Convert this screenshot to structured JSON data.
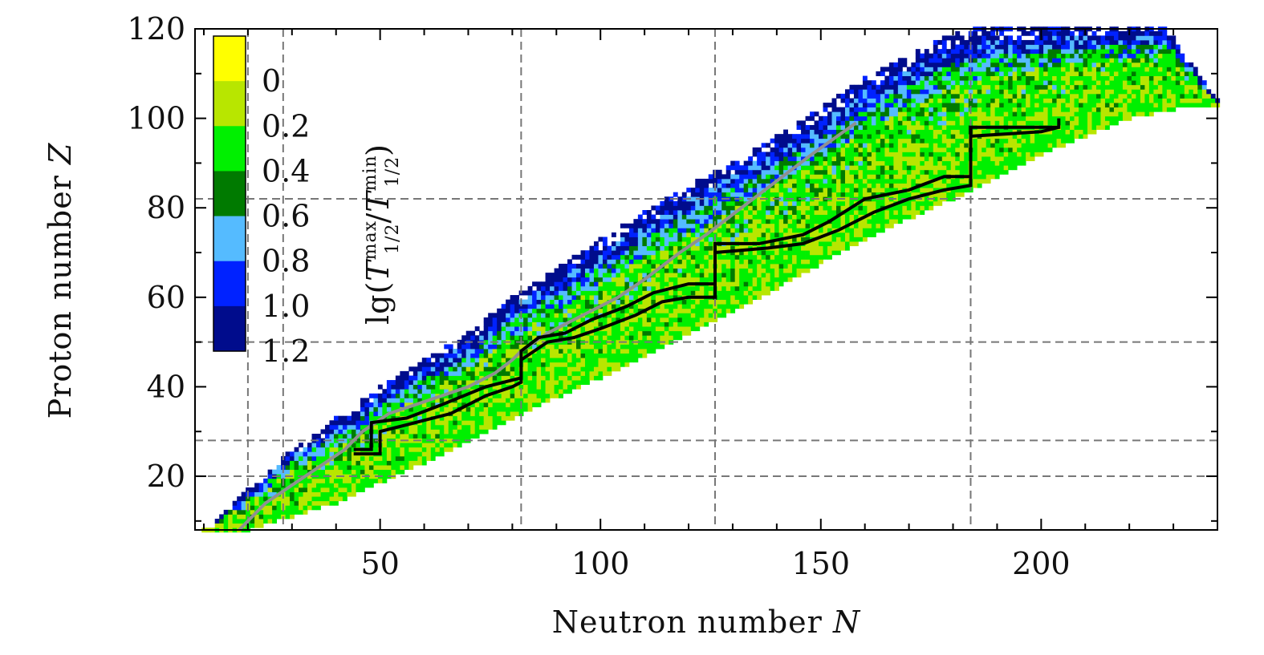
{
  "chart_data": {
    "type": "heatmap",
    "title": "",
    "xlabel": "Neutron number",
    "xlabel_symbol": "N",
    "ylabel": "Proton number",
    "ylabel_symbol": "Z",
    "xlim": [
      8,
      240
    ],
    "ylim": [
      8,
      120
    ],
    "x_ticks": [
      50,
      100,
      150,
      200
    ],
    "y_ticks": [
      20,
      40,
      60,
      80,
      100,
      120
    ],
    "x_tick_labels": [
      "50",
      "100",
      "150",
      "200"
    ],
    "y_tick_labels": [
      "20",
      "40",
      "60",
      "80",
      "100",
      "120"
    ],
    "grid": "dashed at magic numbers",
    "magic_numbers_N": [
      20,
      28,
      82,
      126,
      184
    ],
    "magic_numbers_Z": [
      20,
      28,
      50,
      82
    ],
    "colorbar": {
      "title": "lg(T^max_1/2 / T^min_1/2)",
      "title_base": "lg(",
      "title_T": "T",
      "title_max": "max",
      "title_min": "min",
      "title_sub": "1/2",
      "title_slash": "/",
      "title_close": ")",
      "placement": "top-left",
      "boundaries": [
        0,
        0.2,
        0.4,
        0.6,
        0.8,
        1.0,
        1.2
      ],
      "tick_labels": [
        "0",
        "0.2",
        "0.4",
        "0.6",
        "0.8",
        "1.0",
        "1.2"
      ],
      "colors": [
        "#ffff00",
        "#b8e600",
        "#00f000",
        "#007a00",
        "#55bbff",
        "#0022ff",
        "#000c8c"
      ]
    },
    "chart_region": {
      "lower_boundary_Z_at_N": [
        [
          20,
          8
        ],
        [
          40,
          14
        ],
        [
          60,
          23
        ],
        [
          80,
          33
        ],
        [
          100,
          42
        ],
        [
          120,
          52
        ],
        [
          140,
          62
        ],
        [
          160,
          73
        ],
        [
          180,
          82
        ],
        [
          200,
          92
        ],
        [
          220,
          100
        ],
        [
          236,
          103
        ]
      ],
      "upper_boundary_Z_at_N": [
        [
          10,
          8
        ],
        [
          30,
          26
        ],
        [
          50,
          40
        ],
        [
          70,
          52
        ],
        [
          80,
          60
        ],
        [
          100,
          73
        ],
        [
          120,
          85
        ],
        [
          140,
          96
        ],
        [
          160,
          109
        ],
        [
          180,
          119
        ],
        [
          190,
          121
        ],
        [
          228,
          121
        ],
        [
          240,
          104
        ]
      ]
    },
    "series": [
      {
        "name": "gray reference path",
        "color": "#909090",
        "points": [
          [
            18,
            8
          ],
          [
            24,
            14
          ],
          [
            30,
            18
          ],
          [
            36,
            22
          ],
          [
            42,
            26
          ],
          [
            46,
            30
          ],
          [
            52,
            34
          ],
          [
            58,
            36
          ],
          [
            64,
            38
          ],
          [
            70,
            40
          ],
          [
            76,
            43
          ],
          [
            80,
            46
          ],
          [
            82,
            48
          ],
          [
            88,
            52
          ],
          [
            96,
            56
          ],
          [
            104,
            60
          ],
          [
            110,
            64
          ],
          [
            118,
            70
          ],
          [
            124,
            74
          ],
          [
            132,
            80
          ],
          [
            140,
            86
          ],
          [
            148,
            92
          ],
          [
            158,
            99
          ]
        ]
      },
      {
        "name": "black upper path",
        "color": "#000000",
        "points": [
          [
            44,
            26
          ],
          [
            48,
            26
          ],
          [
            48,
            32
          ],
          [
            56,
            33
          ],
          [
            64,
            36
          ],
          [
            74,
            40
          ],
          [
            82,
            42
          ],
          [
            82,
            48
          ],
          [
            86,
            51
          ],
          [
            92,
            52
          ],
          [
            98,
            55
          ],
          [
            106,
            58
          ],
          [
            112,
            61
          ],
          [
            120,
            63
          ],
          [
            126,
            63
          ],
          [
            126,
            72
          ],
          [
            136,
            72
          ],
          [
            146,
            74
          ],
          [
            152,
            77
          ],
          [
            160,
            82
          ],
          [
            170,
            84
          ],
          [
            178,
            87
          ],
          [
            184,
            87
          ],
          [
            184,
            98
          ],
          [
            204,
            98
          ],
          [
            204,
            100
          ]
        ]
      },
      {
        "name": "black lower path",
        "color": "#000000",
        "points": [
          [
            44,
            25
          ],
          [
            50,
            25
          ],
          [
            50,
            30
          ],
          [
            58,
            32
          ],
          [
            66,
            34
          ],
          [
            74,
            38
          ],
          [
            80,
            40
          ],
          [
            82,
            41
          ],
          [
            82,
            46
          ],
          [
            88,
            50
          ],
          [
            94,
            51
          ],
          [
            100,
            53
          ],
          [
            108,
            56
          ],
          [
            114,
            59
          ],
          [
            120,
            60
          ],
          [
            126,
            60
          ],
          [
            126,
            70
          ],
          [
            138,
            71
          ],
          [
            146,
            72
          ],
          [
            154,
            75
          ],
          [
            162,
            79
          ],
          [
            170,
            82
          ],
          [
            178,
            84
          ],
          [
            184,
            85
          ],
          [
            184,
            96
          ],
          [
            200,
            97
          ],
          [
            204,
            98
          ]
        ]
      }
    ]
  }
}
